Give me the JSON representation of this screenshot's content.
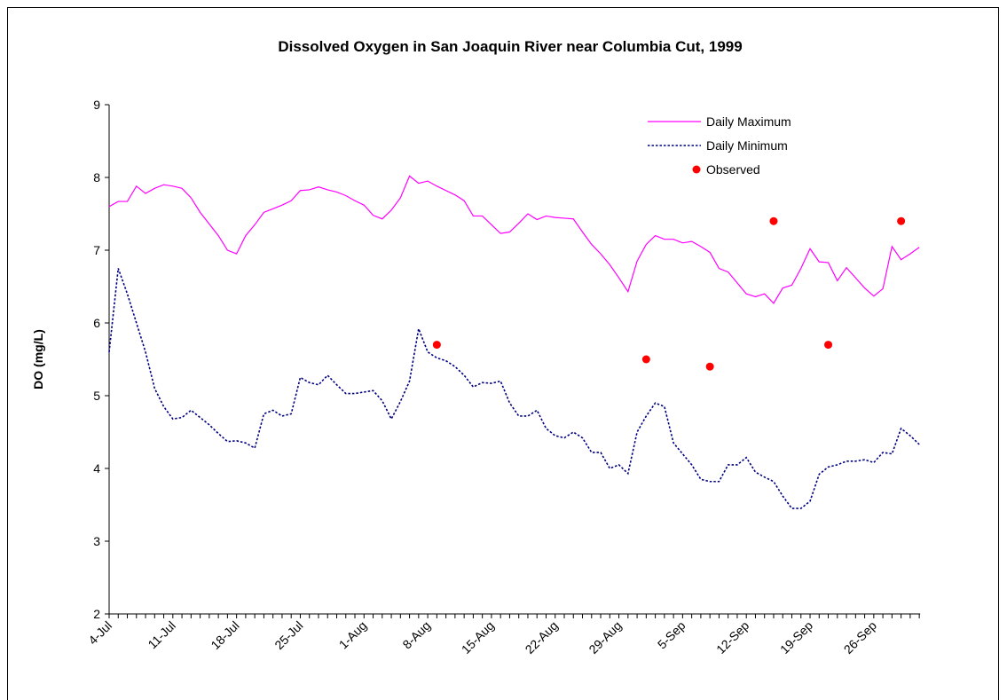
{
  "chart_data": {
    "type": "line",
    "title": "Dissolved Oxygen in San Joaquin River near Columbia Cut, 1999",
    "y_label": "DO (mg/L)",
    "categories": [
      "4-Jul",
      null,
      null,
      null,
      null,
      null,
      null,
      "11-Jul",
      null,
      null,
      null,
      null,
      null,
      null,
      "18-Jul",
      null,
      null,
      null,
      null,
      null,
      null,
      "25-Jul",
      null,
      null,
      null,
      null,
      null,
      null,
      "1-Aug",
      null,
      null,
      null,
      null,
      null,
      null,
      "8-Aug",
      null,
      null,
      null,
      null,
      null,
      null,
      "15-Aug",
      null,
      null,
      null,
      null,
      null,
      null,
      "22-Aug",
      null,
      null,
      null,
      null,
      null,
      null,
      "29-Aug",
      null,
      null,
      null,
      null,
      null,
      null,
      "5-Sep",
      null,
      null,
      null,
      null,
      null,
      null,
      "12-Sep",
      null,
      null,
      null,
      null,
      null,
      null,
      "19-Sep",
      null,
      null,
      null,
      null,
      null,
      null,
      "26-Sep",
      null,
      null,
      null,
      null,
      null
    ],
    "series": [
      {
        "name": "Daily Maximum",
        "color": "#ff00ff",
        "line_style": "solid",
        "values": [
          7.6,
          7.67,
          7.67,
          7.88,
          7.78,
          7.85,
          7.9,
          7.88,
          7.85,
          7.72,
          7.52,
          7.36,
          7.2,
          7.0,
          6.95,
          7.2,
          7.35,
          7.52,
          7.57,
          7.62,
          7.68,
          7.82,
          7.83,
          7.87,
          7.83,
          7.8,
          7.75,
          7.68,
          7.62,
          7.48,
          7.43,
          7.55,
          7.72,
          8.02,
          7.92,
          7.95,
          7.88,
          7.82,
          7.76,
          7.68,
          7.47,
          7.47,
          7.35,
          7.23,
          7.25,
          7.37,
          7.5,
          7.42,
          7.47,
          7.45,
          7.44,
          7.43,
          7.25,
          7.08,
          6.95,
          6.8,
          6.62,
          6.43,
          6.85,
          7.08,
          7.2,
          7.15,
          7.15,
          7.1,
          7.12,
          7.05,
          6.97,
          6.75,
          6.7,
          6.55,
          6.4,
          6.36,
          6.4,
          6.27,
          6.48,
          6.52,
          6.75,
          7.02,
          6.84,
          6.83,
          6.58,
          6.76,
          6.62,
          6.48,
          6.37,
          6.47,
          7.05,
          6.87,
          6.95,
          7.04
        ]
      },
      {
        "name": "Daily Minimum",
        "color": "#000080",
        "line_style": "dotted",
        "values": [
          5.6,
          6.75,
          6.4,
          6.0,
          5.6,
          5.1,
          4.85,
          4.68,
          4.7,
          4.8,
          4.7,
          4.6,
          4.48,
          4.37,
          4.38,
          4.35,
          4.28,
          4.75,
          4.8,
          4.72,
          4.75,
          5.25,
          5.18,
          5.15,
          5.28,
          5.15,
          5.03,
          5.03,
          5.05,
          5.07,
          4.93,
          4.68,
          4.92,
          5.2,
          5.92,
          5.6,
          5.52,
          5.48,
          5.4,
          5.28,
          5.12,
          5.18,
          5.17,
          5.2,
          4.9,
          4.72,
          4.72,
          4.8,
          4.55,
          4.45,
          4.42,
          4.5,
          4.42,
          4.22,
          4.22,
          4.0,
          4.05,
          3.93,
          4.5,
          4.72,
          4.9,
          4.85,
          4.35,
          4.2,
          4.05,
          3.85,
          3.82,
          3.82,
          4.05,
          4.05,
          4.15,
          3.95,
          3.88,
          3.82,
          3.62,
          3.45,
          3.45,
          3.55,
          3.92,
          4.02,
          4.05,
          4.1,
          4.1,
          4.12,
          4.08,
          4.22,
          4.2,
          4.55,
          4.45,
          4.33
        ]
      },
      {
        "name": "Observed",
        "color": "#ff0000",
        "line_style": "none",
        "marker": "circle",
        "values": [
          null,
          null,
          null,
          null,
          null,
          null,
          null,
          null,
          null,
          null,
          null,
          null,
          null,
          null,
          null,
          null,
          null,
          null,
          null,
          null,
          null,
          null,
          null,
          null,
          null,
          null,
          null,
          null,
          null,
          null,
          null,
          null,
          null,
          null,
          null,
          null,
          5.7,
          null,
          null,
          null,
          null,
          null,
          null,
          null,
          null,
          null,
          null,
          null,
          null,
          null,
          null,
          null,
          null,
          null,
          null,
          null,
          null,
          null,
          null,
          5.5,
          null,
          null,
          null,
          null,
          null,
          null,
          5.4,
          null,
          null,
          null,
          null,
          null,
          null,
          7.4,
          null,
          null,
          null,
          null,
          null,
          5.7,
          null,
          null,
          null,
          null,
          null,
          null,
          null,
          7.4,
          null,
          null
        ]
      }
    ],
    "ylim": [
      2,
      9
    ],
    "yticks": [
      2,
      3,
      4,
      5,
      6,
      7,
      8,
      9
    ],
    "grid": false,
    "legend": "upper right"
  }
}
